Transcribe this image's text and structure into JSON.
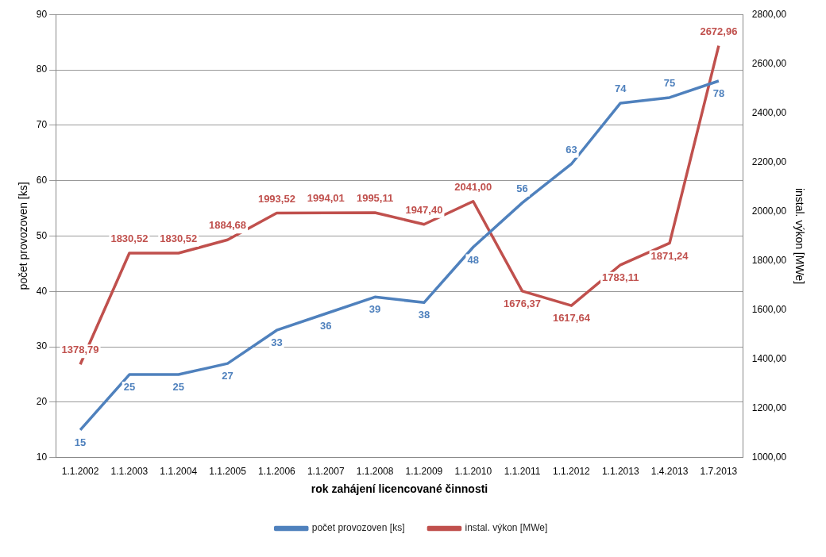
{
  "chart_data": {
    "type": "line",
    "xlabel": "rok zahájení licencované činnosti",
    "ylabel": "počet provozoven [ks]",
    "y2label": "instal. výkon [MWe]",
    "categories": [
      "1.1.2002",
      "1.1.2003",
      "1.1.2004",
      "1.1.2005",
      "1.1.2006",
      "1.1.2007",
      "1.1.2008",
      "1.1.2009",
      "1.1.2010",
      "1.1.2011",
      "1.1.2012",
      "1.1.2013",
      "1.4.2013",
      "1.7.2013"
    ],
    "series": [
      {
        "name": "počet provozoven [ks]",
        "color": "#4f81bd",
        "values": [
          15,
          25,
          25,
          27,
          33,
          36,
          39,
          38,
          48,
          56,
          63,
          74,
          75,
          78
        ],
        "value_labels": [
          "15",
          "25",
          "25",
          "27",
          "33",
          "36",
          "39",
          "38",
          "48",
          "56",
          "63",
          "74",
          "75",
          "78"
        ]
      },
      {
        "name": "instal. výkon [MWe]",
        "color": "#c0504d",
        "axis": "y2",
        "values": [
          1378.79,
          1830.52,
          1830.52,
          1884.68,
          1993.52,
          1994.01,
          1995.11,
          1947.4,
          2041.0,
          1676.37,
          1617.64,
          1783.11,
          1871.24,
          2672.96
        ],
        "value_labels": [
          "1378,79",
          "1830,52",
          "1830,52",
          "1884,68",
          "1993,52",
          "1994,01",
          "1995,11",
          "1947,40",
          "2041,00",
          "1676,37",
          "1617,64",
          "1783,11",
          "1871,24",
          "2672,96"
        ]
      }
    ],
    "ylim": [
      10,
      90
    ],
    "yticks": [
      10,
      20,
      30,
      40,
      50,
      60,
      70,
      80,
      90
    ],
    "y2lim": [
      1000,
      2800
    ],
    "y2ticks": [
      {
        "value": 1000,
        "label": "1000,00"
      },
      {
        "value": 1200,
        "label": "1200,00"
      },
      {
        "value": 1400,
        "label": "1400,00"
      },
      {
        "value": 1600,
        "label": "1600,00"
      },
      {
        "value": 1800,
        "label": "1800,00"
      },
      {
        "value": 2000,
        "label": "2000,00"
      },
      {
        "value": 2200,
        "label": "2200,00"
      },
      {
        "value": 2400,
        "label": "2400,00"
      },
      {
        "value": 2600,
        "label": "2600,00"
      },
      {
        "value": 2800,
        "label": "2800,00"
      }
    ],
    "grid": "y",
    "legend": "bottom",
    "marker": "none",
    "line_style": "solid"
  }
}
